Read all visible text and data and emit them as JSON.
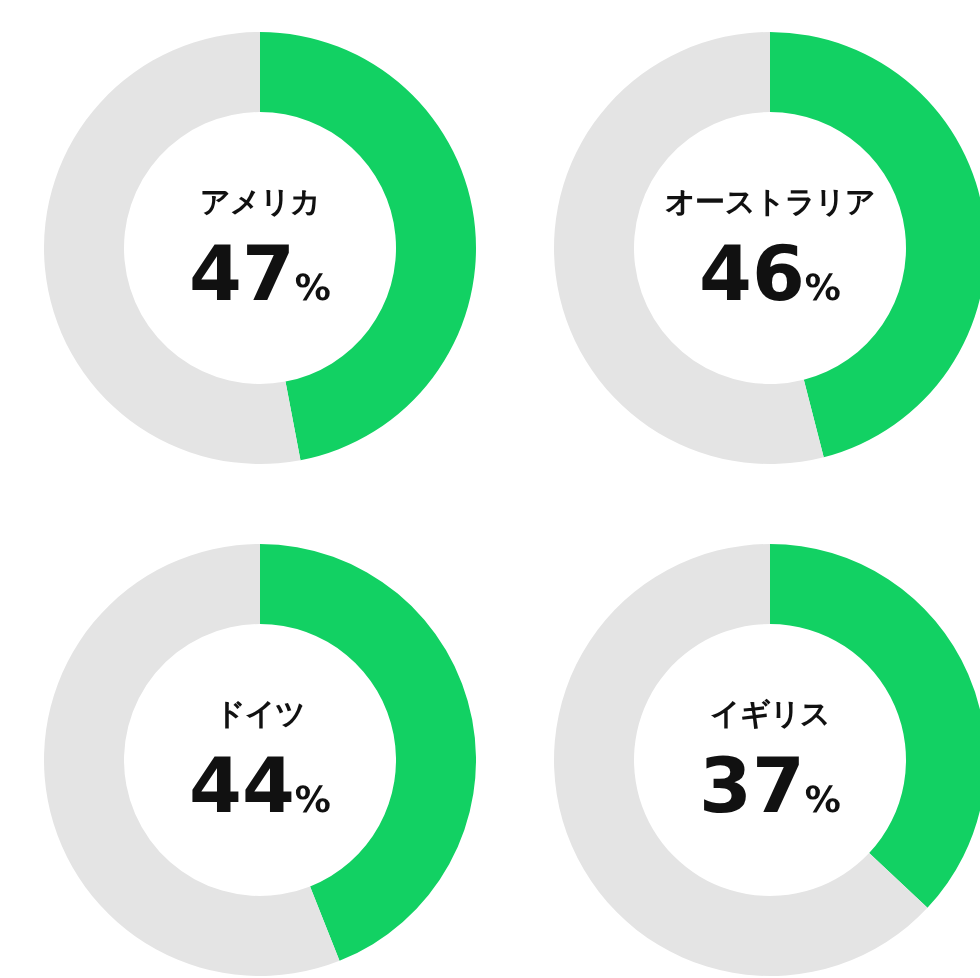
{
  "chart_data": [
    {
      "type": "donut",
      "title": "アメリカ",
      "categories": [
        null,
        null
      ],
      "values": [
        47,
        53
      ],
      "colors": [
        "#12d163",
        "#e4e4e4"
      ],
      "annotations": [
        "47%"
      ]
    },
    {
      "type": "donut",
      "title": "オーストラリア",
      "categories": [
        null,
        null
      ],
      "values": [
        46,
        54
      ],
      "colors": [
        "#12d163",
        "#e4e4e4"
      ],
      "annotations": [
        "46%"
      ]
    },
    {
      "type": "donut",
      "title": "ドイツ",
      "categories": [
        null,
        null
      ],
      "values": [
        44,
        56
      ],
      "colors": [
        "#12d163",
        "#e4e4e4"
      ],
      "annotations": [
        "44%"
      ]
    },
    {
      "type": "donut",
      "title": "イギリス",
      "categories": [
        null,
        null
      ],
      "values": [
        37,
        63
      ],
      "colors": [
        "#12d163",
        "#e4e4e4"
      ],
      "annotations": [
        "37%"
      ]
    }
  ]
}
